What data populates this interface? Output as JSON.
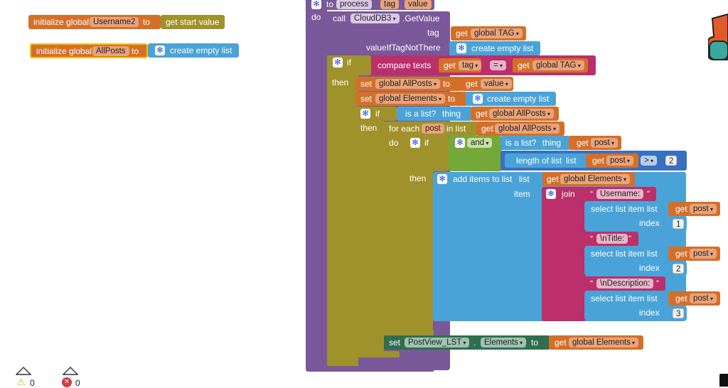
{
  "globals": {
    "username2": {
      "init_label": "initialize global",
      "name": "Username2",
      "to": "to",
      "value": "get start value"
    },
    "allposts": {
      "init_label": "initialize global",
      "name": "AllPosts",
      "to": "to",
      "value": "create empty list"
    }
  },
  "procedure": {
    "to": "to",
    "name": "process",
    "params": [
      "tag",
      "value"
    ],
    "do": "do",
    "call": "call",
    "component": "CloudDB3",
    "method": ".GetValue",
    "tag_label": "tag",
    "get": "get",
    "global_tag": "global TAG",
    "value_if_not_there": "valueIfTagNotThere",
    "create_empty_list": "create empty list",
    "if": "if",
    "then": "then",
    "compare_texts": "compare texts",
    "tag_var": "tag",
    "op": "=",
    "set": "set",
    "global_allposts": "global AllPosts",
    "global_elements": "global Elements",
    "value_var": "value",
    "is_a_list": "is a list?",
    "thing": "thing",
    "for_each": "for each",
    "post": "post",
    "in_list": "in list",
    "and": "and",
    "length_of_list": "length of list",
    "list": "list",
    "gt": ">",
    "two": "2",
    "add_items_to_list": "add items to list",
    "item": "item",
    "join": "join",
    "str_username": "Username:",
    "str_title": "\\nTitle:",
    "str_description": "\\nDescription:",
    "select_list_item": "select list item",
    "index": "index",
    "idx1": "1",
    "idx2": "2",
    "idx3": "3",
    "postview": "PostView_LST",
    "elements_prop": "Elements",
    "dot": "."
  },
  "status": {
    "warnings": "0",
    "errors": "0"
  },
  "colors": {
    "procedure": "#7a5899",
    "variable": "#d46f2a",
    "list": "#4aa3d8",
    "control": "#a0922b",
    "logic": "#74a93a",
    "text": "#bb2f6b",
    "component": "#2f6e4f"
  }
}
